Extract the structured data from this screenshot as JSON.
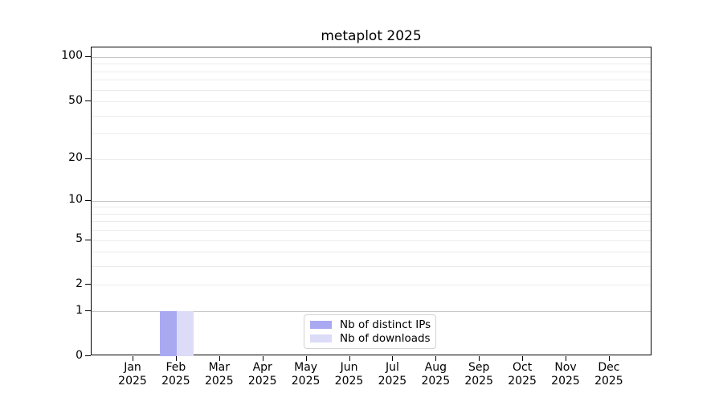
{
  "chart_data": {
    "type": "bar",
    "title": "metaplot 2025",
    "categories": [
      "Jan",
      "Feb",
      "Mar",
      "Apr",
      "May",
      "Jun",
      "Jul",
      "Aug",
      "Sep",
      "Oct",
      "Nov",
      "Dec"
    ],
    "category_year": "2025",
    "series": [
      {
        "name": "Nb of distinct IPs",
        "color": "#a9a9f2",
        "values": [
          0,
          1,
          0,
          0,
          0,
          0,
          0,
          0,
          0,
          0,
          0,
          0
        ]
      },
      {
        "name": "Nb of downloads",
        "color": "#dcdcf8",
        "values": [
          0,
          1,
          0,
          0,
          0,
          0,
          0,
          0,
          0,
          0,
          0,
          0
        ]
      }
    ],
    "y_axis": {
      "scale": "log10(1+y)",
      "ticks": [
        0,
        1,
        2,
        5,
        10,
        20,
        50,
        100
      ],
      "range": [
        0,
        116
      ],
      "major_gridlines": [
        1,
        10,
        100
      ],
      "minor_gridlines": [
        2,
        3,
        4,
        5,
        6,
        7,
        8,
        9,
        20,
        30,
        40,
        50,
        60,
        70,
        80,
        90
      ]
    },
    "grid": "horizontal",
    "legend": {
      "position": "lower center"
    }
  },
  "colors": {
    "bar_distinct_ips": "#a9a9f2",
    "bar_downloads": "#dcdcf8",
    "major_grid": "#c7c7c7",
    "minor_grid": "#ececec",
    "axis": "#000000",
    "text": "#000000",
    "legend_border": "#d3d3d3",
    "legend_background": "#ffffff"
  }
}
